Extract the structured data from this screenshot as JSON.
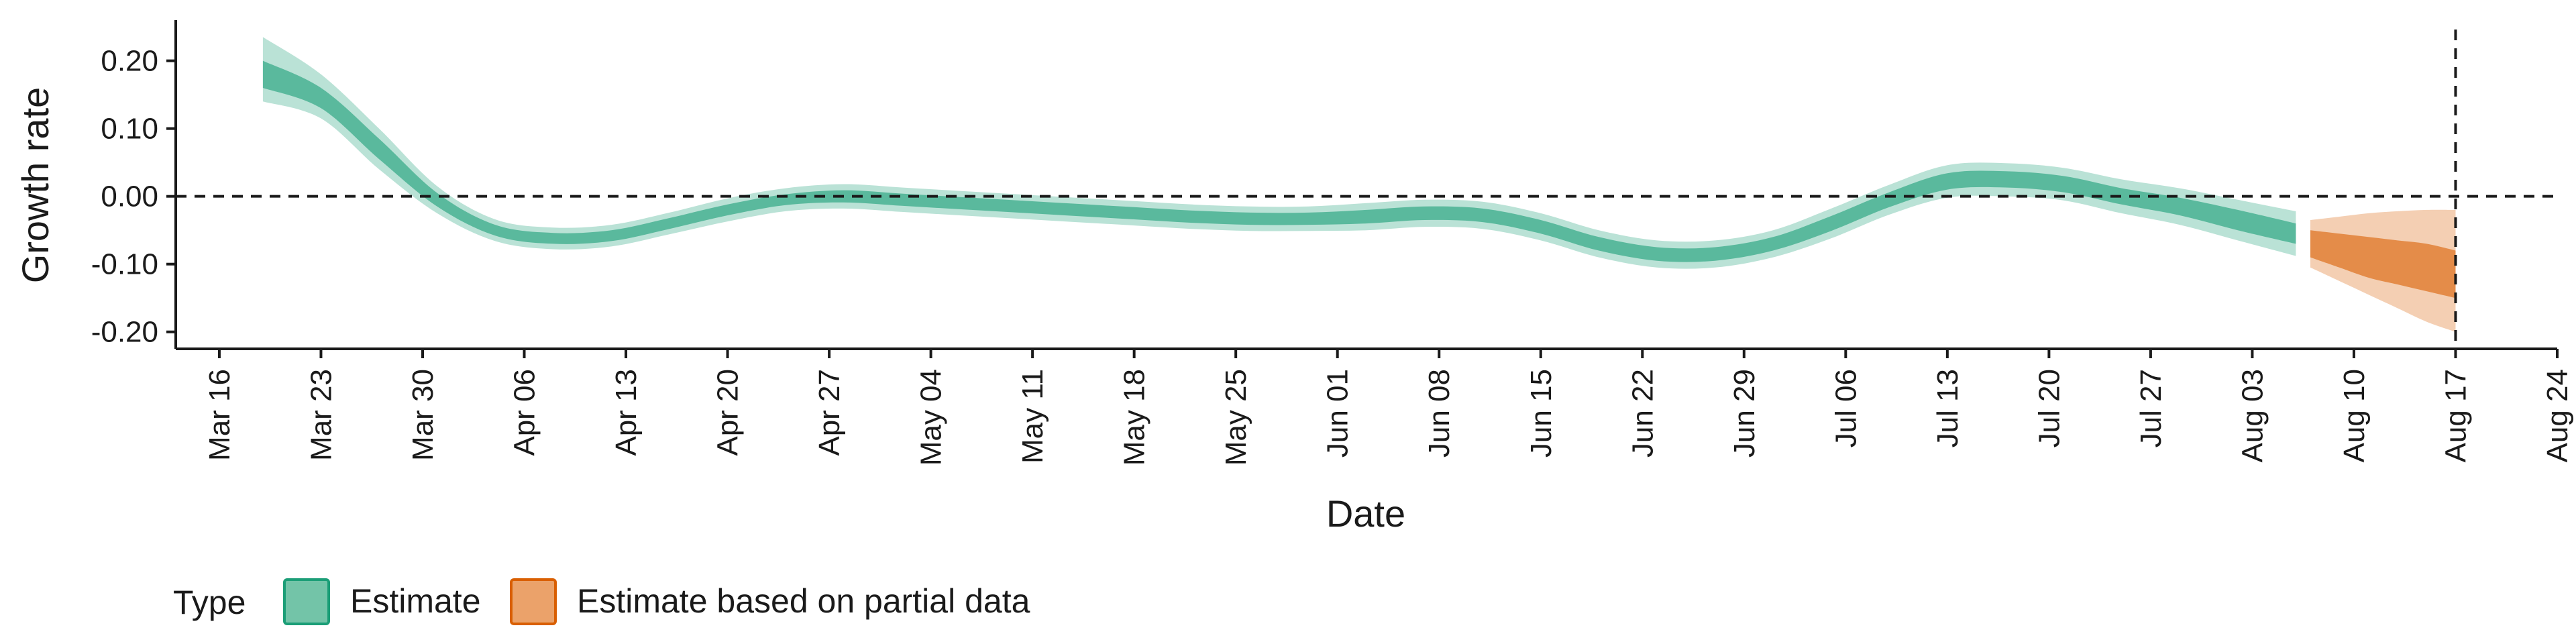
{
  "chart_data": {
    "type": "area",
    "xlabel": "Date",
    "ylabel": "Growth rate",
    "ylim": [
      -0.225,
      0.26
    ],
    "xlim": [
      "2020-03-13",
      "2020-08-24"
    ],
    "x_ticks": [
      "2020-03-16",
      "2020-03-23",
      "2020-03-30",
      "2020-04-06",
      "2020-04-13",
      "2020-04-20",
      "2020-04-27",
      "2020-05-04",
      "2020-05-11",
      "2020-05-18",
      "2020-05-25",
      "2020-06-01",
      "2020-06-08",
      "2020-06-15",
      "2020-06-22",
      "2020-06-29",
      "2020-07-06",
      "2020-07-13",
      "2020-07-20",
      "2020-07-27",
      "2020-08-03",
      "2020-08-10",
      "2020-08-17",
      "2020-08-24"
    ],
    "x_tick_labels": [
      "Mar 16",
      "Mar 23",
      "Mar 30",
      "Apr 06",
      "Apr 13",
      "Apr 20",
      "Apr 27",
      "May 04",
      "May 11",
      "May 18",
      "May 25",
      "Jun 01",
      "Jun 08",
      "Jun 15",
      "Jun 22",
      "Jun 29",
      "Jul 06",
      "Jul 13",
      "Jul 20",
      "Jul 27",
      "Aug 03",
      "Aug 10",
      "Aug 17",
      "Aug 24"
    ],
    "y_ticks": [
      0.2,
      0.1,
      0.0,
      -0.1,
      -0.2
    ],
    "y_tick_labels": [
      "0.20",
      "0.10",
      "0.00",
      "-0.10",
      "-0.20"
    ],
    "reference_lines": {
      "horizontal_y": 0,
      "vertical_x": "2020-08-17",
      "style": "dashed"
    },
    "legend": {
      "title": "Type",
      "placement": "bottom-left",
      "entries": [
        {
          "label": "Estimate",
          "fill": "#73c4a8",
          "stroke": "#1b9e77"
        },
        {
          "label": "Estimate based on partial data",
          "fill": "#eba26a",
          "stroke": "#d95f02"
        }
      ]
    },
    "series": [
      {
        "name": "Estimate",
        "color": "#1b9e77",
        "outer_opacity": 0.3,
        "inner_opacity": 0.6,
        "x": [
          "2020-03-19",
          "2020-03-23",
          "2020-03-27",
          "2020-03-31",
          "2020-04-04",
          "2020-04-08",
          "2020-04-12",
          "2020-04-16",
          "2020-04-20",
          "2020-04-24",
          "2020-04-28",
          "2020-05-02",
          "2020-05-06",
          "2020-05-10",
          "2020-05-14",
          "2020-05-18",
          "2020-05-22",
          "2020-05-26",
          "2020-05-30",
          "2020-06-03",
          "2020-06-07",
          "2020-06-11",
          "2020-06-15",
          "2020-06-19",
          "2020-06-23",
          "2020-06-27",
          "2020-07-01",
          "2020-07-05",
          "2020-07-09",
          "2020-07-13",
          "2020-07-17",
          "2020-07-21",
          "2020-07-25",
          "2020-07-29",
          "2020-08-02",
          "2020-08-06"
        ],
        "median": [
          0.18,
          0.145,
          0.07,
          -0.005,
          -0.05,
          -0.062,
          -0.058,
          -0.04,
          -0.02,
          -0.005,
          0.0,
          -0.005,
          -0.01,
          -0.015,
          -0.02,
          -0.025,
          -0.03,
          -0.033,
          -0.033,
          -0.03,
          -0.025,
          -0.028,
          -0.045,
          -0.07,
          -0.085,
          -0.085,
          -0.07,
          -0.04,
          -0.005,
          0.022,
          0.025,
          0.018,
          0.0,
          -0.015,
          -0.035,
          -0.055
        ],
        "inner_lower": [
          0.16,
          0.13,
          0.055,
          -0.015,
          -0.058,
          -0.07,
          -0.066,
          -0.048,
          -0.028,
          -0.013,
          -0.009,
          -0.014,
          -0.019,
          -0.024,
          -0.029,
          -0.034,
          -0.039,
          -0.042,
          -0.042,
          -0.04,
          -0.035,
          -0.038,
          -0.055,
          -0.08,
          -0.095,
          -0.095,
          -0.08,
          -0.051,
          -0.016,
          0.01,
          0.013,
          0.006,
          -0.012,
          -0.028,
          -0.05,
          -0.07
        ],
        "inner_upper": [
          0.2,
          0.16,
          0.085,
          0.005,
          -0.042,
          -0.054,
          -0.05,
          -0.032,
          -0.012,
          0.003,
          0.009,
          0.004,
          -0.001,
          -0.006,
          -0.011,
          -0.016,
          -0.021,
          -0.024,
          -0.024,
          -0.02,
          -0.015,
          -0.018,
          -0.035,
          -0.06,
          -0.075,
          -0.075,
          -0.06,
          -0.029,
          0.006,
          0.034,
          0.037,
          0.03,
          0.012,
          -0.002,
          -0.02,
          -0.04
        ],
        "outer_lower": [
          0.14,
          0.115,
          0.04,
          -0.025,
          -0.066,
          -0.078,
          -0.074,
          -0.056,
          -0.037,
          -0.022,
          -0.018,
          -0.023,
          -0.028,
          -0.033,
          -0.038,
          -0.043,
          -0.048,
          -0.051,
          -0.051,
          -0.05,
          -0.045,
          -0.048,
          -0.065,
          -0.09,
          -0.105,
          -0.105,
          -0.09,
          -0.062,
          -0.027,
          -0.002,
          0.0,
          -0.006,
          -0.025,
          -0.042,
          -0.065,
          -0.088
        ],
        "outer_upper": [
          0.235,
          0.18,
          0.1,
          0.015,
          -0.034,
          -0.046,
          -0.042,
          -0.024,
          -0.003,
          0.012,
          0.018,
          0.013,
          0.008,
          0.003,
          -0.002,
          -0.007,
          -0.012,
          -0.015,
          -0.015,
          -0.01,
          -0.005,
          -0.008,
          -0.025,
          -0.05,
          -0.065,
          -0.065,
          -0.05,
          -0.018,
          0.017,
          0.046,
          0.049,
          0.042,
          0.025,
          0.012,
          -0.005,
          -0.022
        ]
      },
      {
        "name": "Estimate based on partial data",
        "color": "#d95f02",
        "outer_opacity": 0.3,
        "inner_opacity": 0.6,
        "x": [
          "2020-08-07",
          "2020-08-09",
          "2020-08-11",
          "2020-08-13",
          "2020-08-15",
          "2020-08-17"
        ],
        "median": [
          -0.07,
          -0.08,
          -0.09,
          -0.1,
          -0.11,
          -0.12
        ],
        "inner_lower": [
          -0.09,
          -0.105,
          -0.12,
          -0.13,
          -0.14,
          -0.15
        ],
        "inner_upper": [
          -0.05,
          -0.055,
          -0.06,
          -0.065,
          -0.07,
          -0.08
        ],
        "outer_lower": [
          -0.105,
          -0.125,
          -0.145,
          -0.165,
          -0.185,
          -0.2
        ],
        "outer_upper": [
          -0.035,
          -0.03,
          -0.025,
          -0.022,
          -0.02,
          -0.02
        ]
      }
    ]
  }
}
